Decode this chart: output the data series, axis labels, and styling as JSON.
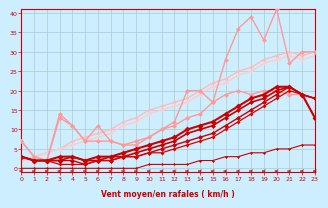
{
  "xlabel": "Vent moyen/en rafales ( km/h )",
  "xlim": [
    0,
    23
  ],
  "ylim": [
    -1,
    41
  ],
  "yticks": [
    0,
    5,
    10,
    15,
    20,
    25,
    30,
    35,
    40
  ],
  "xticks": [
    0,
    1,
    2,
    3,
    4,
    5,
    6,
    7,
    8,
    9,
    10,
    11,
    12,
    13,
    14,
    15,
    16,
    17,
    18,
    19,
    20,
    21,
    22,
    23
  ],
  "bg_color": "#cceeff",
  "grid_color": "#aacccc",
  "series": [
    {
      "comment": "light pink diagonal line 1 (top envelope)",
      "x": [
        0,
        1,
        2,
        3,
        4,
        5,
        6,
        7,
        8,
        9,
        10,
        11,
        12,
        13,
        14,
        15,
        16,
        17,
        18,
        19,
        20,
        21,
        22,
        23
      ],
      "y": [
        2,
        3,
        4,
        5,
        7,
        8,
        9,
        10,
        12,
        13,
        15,
        16,
        17,
        18,
        20,
        22,
        23,
        25,
        26,
        28,
        29,
        30,
        29,
        30
      ],
      "color": "#ffbbbb",
      "lw": 1.0,
      "marker": "D",
      "ms": 2.0,
      "zorder": 2
    },
    {
      "comment": "light pink line 2",
      "x": [
        0,
        1,
        2,
        3,
        4,
        5,
        6,
        7,
        8,
        9,
        10,
        11,
        12,
        13,
        14,
        15,
        16,
        17,
        18,
        19,
        20,
        21,
        22,
        23
      ],
      "y": [
        2,
        3,
        4,
        5,
        6,
        7,
        8,
        9,
        11,
        12,
        14,
        15,
        16,
        17,
        19,
        21,
        22,
        24,
        25,
        27,
        28,
        29,
        28,
        29
      ],
      "color": "#ffcccc",
      "lw": 1.0,
      "marker": "D",
      "ms": 2.0,
      "zorder": 2
    },
    {
      "comment": "pink spiky line - rafales peak",
      "x": [
        0,
        1,
        2,
        3,
        4,
        5,
        6,
        7,
        8,
        9,
        10,
        11,
        12,
        13,
        14,
        15,
        16,
        17,
        18,
        19,
        20,
        21,
        22,
        23
      ],
      "y": [
        7,
        3,
        2,
        14,
        11,
        7,
        11,
        7,
        6,
        7,
        8,
        10,
        12,
        20,
        20,
        17,
        28,
        36,
        39,
        33,
        41,
        27,
        30,
        30
      ],
      "color": "#ff9999",
      "lw": 1.0,
      "marker": "D",
      "ms": 2.5,
      "zorder": 3
    },
    {
      "comment": "medium pink line",
      "x": [
        0,
        1,
        2,
        3,
        4,
        5,
        6,
        7,
        8,
        9,
        10,
        11,
        12,
        13,
        14,
        15,
        16,
        17,
        18,
        19,
        20,
        21,
        22,
        23
      ],
      "y": [
        7,
        3,
        2,
        13,
        11,
        7,
        7,
        7,
        6,
        6,
        8,
        10,
        11,
        13,
        14,
        17,
        19,
        20,
        19,
        20,
        20,
        19,
        19,
        13
      ],
      "color": "#ff9999",
      "lw": 1.0,
      "marker": "D",
      "ms": 2.5,
      "zorder": 3
    },
    {
      "comment": "dark red bold line (main curve)",
      "x": [
        0,
        1,
        2,
        3,
        4,
        5,
        6,
        7,
        8,
        9,
        10,
        11,
        12,
        13,
        14,
        15,
        16,
        17,
        18,
        19,
        20,
        21,
        22,
        23
      ],
      "y": [
        3,
        2,
        2,
        3,
        3,
        2,
        3,
        3,
        4,
        5,
        6,
        7,
        8,
        10,
        11,
        12,
        14,
        16,
        18,
        19,
        21,
        21,
        19,
        13
      ],
      "color": "#cc0000",
      "lw": 1.5,
      "marker": "D",
      "ms": 3.0,
      "zorder": 5
    },
    {
      "comment": "dark red line 2",
      "x": [
        0,
        1,
        2,
        3,
        4,
        5,
        6,
        7,
        8,
        9,
        10,
        11,
        12,
        13,
        14,
        15,
        16,
        17,
        18,
        19,
        20,
        21,
        22,
        23
      ],
      "y": [
        3,
        2,
        2,
        2,
        3,
        2,
        2,
        3,
        3,
        4,
        5,
        6,
        7,
        9,
        10,
        11,
        13,
        15,
        17,
        18,
        20,
        21,
        19,
        18
      ],
      "color": "#cc0000",
      "lw": 1.2,
      "marker": "D",
      "ms": 2.5,
      "zorder": 4
    },
    {
      "comment": "dark red line 3",
      "x": [
        0,
        1,
        2,
        3,
        4,
        5,
        6,
        7,
        8,
        9,
        10,
        11,
        12,
        13,
        14,
        15,
        16,
        17,
        18,
        19,
        20,
        21,
        22,
        23
      ],
      "y": [
        3,
        2,
        2,
        2,
        2,
        1,
        2,
        2,
        3,
        3,
        4,
        5,
        6,
        7,
        8,
        9,
        11,
        13,
        15,
        17,
        19,
        21,
        19,
        18
      ],
      "color": "#cc0000",
      "lw": 1.0,
      "marker": "D",
      "ms": 2.5,
      "zorder": 4
    },
    {
      "comment": "dark red line 4 (lowest)",
      "x": [
        0,
        1,
        2,
        3,
        4,
        5,
        6,
        7,
        8,
        9,
        10,
        11,
        12,
        13,
        14,
        15,
        16,
        17,
        18,
        19,
        20,
        21,
        22,
        23
      ],
      "y": [
        3,
        2,
        2,
        1,
        1,
        1,
        2,
        2,
        3,
        3,
        4,
        4,
        5,
        6,
        7,
        8,
        10,
        12,
        14,
        16,
        18,
        20,
        19,
        18
      ],
      "color": "#dd0000",
      "lw": 0.9,
      "marker": "D",
      "ms": 2.0,
      "zorder": 4
    },
    {
      "comment": "very bottom flat line",
      "x": [
        0,
        1,
        2,
        3,
        4,
        5,
        6,
        7,
        8,
        9,
        10,
        11,
        12,
        13,
        14,
        15,
        16,
        17,
        18,
        19,
        20,
        21,
        22,
        23
      ],
      "y": [
        0,
        0,
        0,
        0,
        0,
        0,
        0,
        0,
        0,
        0,
        1,
        1,
        1,
        1,
        2,
        2,
        3,
        3,
        4,
        4,
        5,
        5,
        6,
        6
      ],
      "color": "#cc0000",
      "lw": 0.8,
      "marker": "D",
      "ms": 1.5,
      "zorder": 3
    }
  ]
}
